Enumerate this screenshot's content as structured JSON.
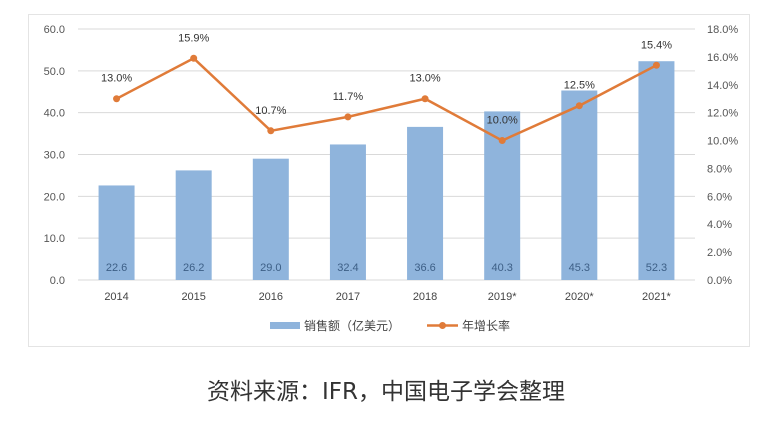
{
  "chart_data": {
    "type": "bar+line",
    "categories": [
      "2014",
      "2015",
      "2016",
      "2017",
      "2018",
      "2019*",
      "2020*",
      "2021*"
    ],
    "series": [
      {
        "name": "销售额（亿美元）",
        "type": "bar",
        "axis": "left",
        "color": "#8fb4dc",
        "values": [
          22.6,
          26.2,
          29.0,
          32.4,
          36.6,
          40.3,
          45.3,
          52.3
        ],
        "labels": [
          "22.6",
          "26.2",
          "29.0",
          "32.4",
          "36.6",
          "40.3",
          "45.3",
          "52.3"
        ]
      },
      {
        "name": "年增长率",
        "type": "line",
        "axis": "right",
        "color": "#e07b39",
        "values": [
          13.0,
          15.9,
          10.7,
          11.7,
          13.0,
          10.0,
          12.5,
          15.4
        ],
        "labels": [
          "13.0%",
          "15.9%",
          "10.7%",
          "11.7%",
          "13.0%",
          "10.0%",
          "12.5%",
          "15.4%"
        ]
      }
    ],
    "left_axis": {
      "ylim": [
        0,
        60
      ],
      "ticks": [
        "0.0",
        "10.0",
        "20.0",
        "30.0",
        "40.0",
        "50.0",
        "60.0"
      ]
    },
    "right_axis": {
      "ylim": [
        0,
        18
      ],
      "ticks": [
        "0.0%",
        "2.0%",
        "4.0%",
        "6.0%",
        "8.0%",
        "10.0%",
        "12.0%",
        "14.0%",
        "16.0%",
        "18.0%"
      ]
    },
    "grid": true,
    "legend_position": "bottom"
  },
  "caption": "资料来源：IFR，中国电子学会整理"
}
